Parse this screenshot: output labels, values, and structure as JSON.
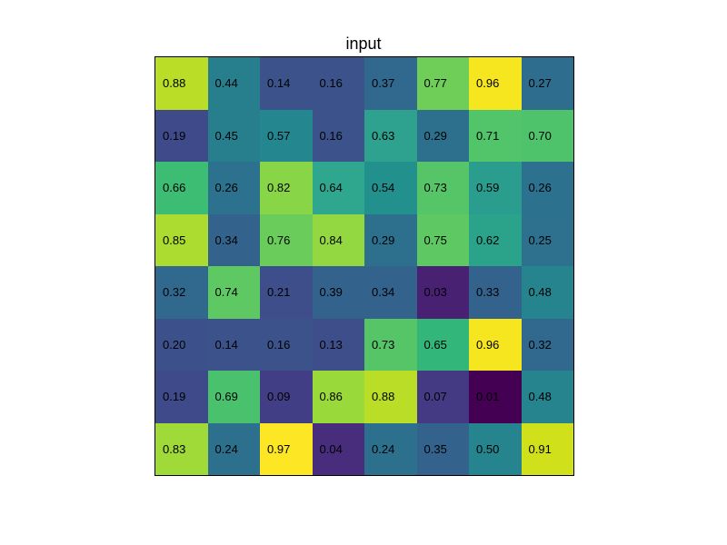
{
  "title": "input",
  "heatmap": {
    "type": "heatmap",
    "rows": 8,
    "cols": 8,
    "title_fontsize": 18,
    "title_color": "#000000",
    "label_fontsize": 13,
    "label_color": "#000000",
    "border_color": "#000000",
    "background_color": "#ffffff",
    "values": [
      [
        0.88,
        0.44,
        0.14,
        0.16,
        0.37,
        0.77,
        0.96,
        0.27
      ],
      [
        0.19,
        0.45,
        0.57,
        0.16,
        0.63,
        0.29,
        0.71,
        0.7
      ],
      [
        0.66,
        0.26,
        0.82,
        0.64,
        0.54,
        0.73,
        0.59,
        0.26
      ],
      [
        0.85,
        0.34,
        0.76,
        0.84,
        0.29,
        0.75,
        0.62,
        0.25
      ],
      [
        0.32,
        0.74,
        0.21,
        0.39,
        0.34,
        0.03,
        0.33,
        0.48
      ],
      [
        0.2,
        0.14,
        0.16,
        0.13,
        0.73,
        0.65,
        0.96,
        0.32
      ],
      [
        0.19,
        0.69,
        0.09,
        0.86,
        0.88,
        0.07,
        0.01,
        0.48
      ],
      [
        0.83,
        0.24,
        0.97,
        0.04,
        0.24,
        0.35,
        0.5,
        0.91
      ]
    ],
    "colors": [
      [
        "#bade28",
        "#277f8e",
        "#3b528b",
        "#3b528b",
        "#31688e",
        "#6ece58",
        "#f6e61f",
        "#2e6d8e"
      ],
      [
        "#3e4a89",
        "#277f8e",
        "#24868e",
        "#3b528b",
        "#2ea28f",
        "#2d708e",
        "#52c469",
        "#4ec36b"
      ],
      [
        "#3dbc74",
        "#2c728e",
        "#88d548",
        "#2fa78f",
        "#22908d",
        "#55c567",
        "#2a9d8e",
        "#2c728e"
      ],
      [
        "#addc30",
        "#33638d",
        "#6acd5b",
        "#93d741",
        "#2d708e",
        "#5ec862",
        "#2ba38a",
        "#2e718e"
      ],
      [
        "#31688e",
        "#5ec862",
        "#3d4e8a",
        "#33638d",
        "#33638d",
        "#482173",
        "#33638d",
        "#25848e"
      ],
      [
        "#3c508b",
        "#3b528b",
        "#3b528b",
        "#3d4e8a",
        "#55c567",
        "#33b679",
        "#f6e61f",
        "#31688e"
      ],
      [
        "#3e4a89",
        "#4ac16d",
        "#423e85",
        "#9ad93a",
        "#bade28",
        "#443a83",
        "#440154",
        "#25848e"
      ],
      [
        "#a0da39",
        "#2d708e",
        "#fde725",
        "#472d7b",
        "#2d708e",
        "#33638d",
        "#25848e",
        "#d0e11c"
      ]
    ],
    "value_min": 0.01,
    "value_max": 0.97,
    "colormap": "viridis"
  }
}
